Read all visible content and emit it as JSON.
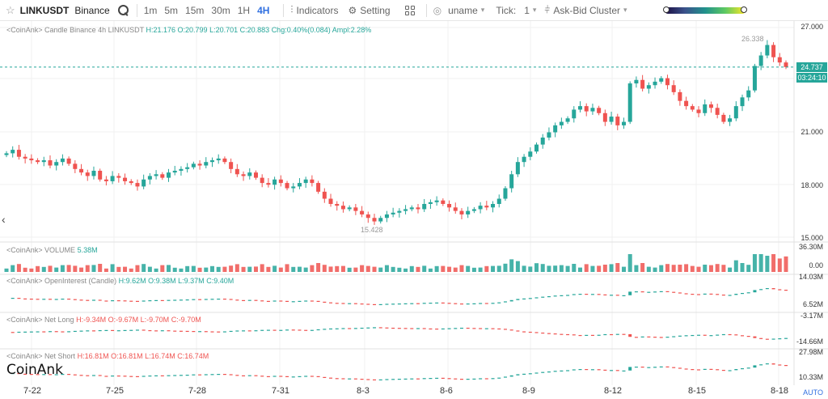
{
  "toolbar": {
    "symbol": "LINKUSDT",
    "exchange": "Binance",
    "timeframes": [
      "1m",
      "5m",
      "15m",
      "30m",
      "1H",
      "4H"
    ],
    "active_timeframe": "4H",
    "indicators_label": "Indicators",
    "setting_label": "Setting",
    "uname_label": "uname",
    "tick_label": "Tick:",
    "tick_value": "1",
    "askbid_label": "Ask-Bid Cluster",
    "accent_color": "#2f6fe0"
  },
  "panels": {
    "candle": {
      "title": "<CoinAnk> Candle",
      "desc": "Binance 4h LINKUSDT",
      "h": "H:21.176",
      "o": "O:20.799",
      "l": "L:20.701",
      "c": "C:20.883",
      "chg": "Chg:0.40%(0.084)",
      "ampl": "Ampl:2.28%",
      "high_marker": "26.338",
      "low_marker": "15.428",
      "last_price": "24.737",
      "countdown": "03:24:10",
      "y_ticks": [
        "27.000",
        "21.000",
        "18.000",
        "15.000"
      ]
    },
    "volume": {
      "title": "<CoinAnk> VOLUME",
      "value": "5.38M",
      "y_ticks": [
        "36.30M",
        "0.00"
      ]
    },
    "oi": {
      "title": "<CoinAnk> OpenInterest (Candle)",
      "h": "H:9.62M",
      "o": "O:9.38M",
      "l": "L:9.37M",
      "c": "C:9.40M",
      "y_ticks": [
        "14.03M",
        "6.52M"
      ]
    },
    "netlong": {
      "title": "<CoinAnk> Net Long",
      "h": "H:-9.34M",
      "o": "O:-9.67M",
      "l": "L:-9.70M",
      "c": "C:-9.70M",
      "y_ticks": [
        "-3.17M",
        "-14.66M"
      ]
    },
    "netshort": {
      "title": "<CoinAnk> Net Short",
      "h": "H:16.81M",
      "o": "O:16.81M",
      "l": "L:16.74M",
      "c": "C:16.74M",
      "y_ticks": [
        "27.98M",
        "10.33M"
      ]
    }
  },
  "x_ticks": [
    "7-22",
    "7-25",
    "7-28",
    "7-31",
    "8-3",
    "8-6",
    "8-9",
    "8-12",
    "8-15",
    "8-18"
  ],
  "watermark": "CoinAnk",
  "auto_label": "AUTO",
  "chart_data": {
    "type": "candlestick",
    "title": "Binance 4h LINKUSDT",
    "ylim": [
      15,
      27
    ],
    "colors": {
      "up": "#26a69a",
      "down": "#ef5350"
    },
    "closes": [
      19.8,
      20.0,
      19.6,
      19.5,
      19.4,
      19.3,
      19.4,
      19.1,
      19.3,
      19.5,
      19.2,
      18.9,
      18.7,
      18.5,
      18.8,
      18.3,
      18.2,
      18.5,
      18.4,
      18.2,
      18.1,
      17.9,
      18.3,
      18.5,
      18.6,
      18.4,
      18.7,
      18.8,
      18.9,
      19.0,
      19.2,
      19.1,
      19.3,
      19.4,
      19.5,
      19.3,
      18.9,
      18.6,
      18.5,
      18.7,
      18.4,
      18.1,
      18.0,
      18.3,
      18.1,
      17.8,
      17.9,
      18.1,
      18.3,
      18.1,
      17.6,
      17.2,
      16.9,
      16.8,
      16.6,
      16.7,
      16.5,
      16.3,
      16.1,
      15.9,
      16.1,
      16.3,
      16.4,
      16.5,
      16.6,
      16.7,
      16.6,
      16.9,
      17.0,
      17.1,
      16.9,
      16.7,
      16.5,
      16.3,
      16.5,
      16.6,
      16.8,
      16.7,
      16.9,
      17.2,
      17.8,
      18.6,
      19.3,
      19.6,
      19.9,
      20.3,
      20.7,
      21.0,
      21.4,
      21.6,
      21.8,
      22.3,
      22.5,
      22.2,
      22.4,
      22.1,
      21.6,
      21.9,
      21.4,
      21.6,
      23.8,
      24.0,
      23.5,
      23.7,
      23.9,
      24.1,
      23.7,
      23.3,
      22.8,
      22.5,
      22.3,
      22.1,
      22.6,
      22.4,
      22.0,
      21.6,
      21.8,
      22.5,
      23.0,
      23.4,
      24.8,
      25.4,
      26.0,
      25.3,
      25.0,
      24.737
    ]
  }
}
